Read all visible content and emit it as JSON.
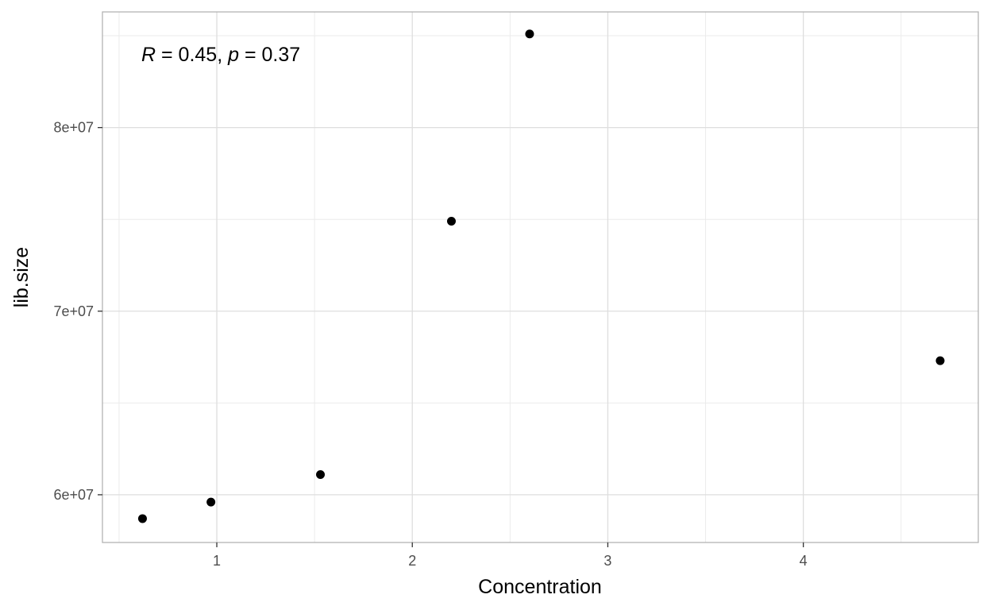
{
  "chart_data": {
    "type": "scatter",
    "title": "",
    "xlabel": "Concentration",
    "ylabel": "lib.size",
    "xlim": [
      0.415,
      4.895
    ],
    "ylim": [
      57400000,
      86300000
    ],
    "x_ticks": [
      1,
      2,
      3,
      4
    ],
    "x_minor_ticks": [
      0.5,
      1.5,
      2.5,
      3.5,
      4.5
    ],
    "y_ticks": [
      60000000,
      70000000,
      80000000
    ],
    "y_tick_labels": [
      "6e+07",
      "7e+07",
      "8e+07"
    ],
    "y_minor_ticks": [
      65000000,
      75000000,
      85000000
    ],
    "grid": true,
    "points": [
      {
        "x": 0.62,
        "y": 58700000
      },
      {
        "x": 0.97,
        "y": 59600000
      },
      {
        "x": 1.53,
        "y": 61100000
      },
      {
        "x": 2.2,
        "y": 74900000
      },
      {
        "x": 2.6,
        "y": 85100000
      },
      {
        "x": 4.7,
        "y": 67300000
      }
    ],
    "point_color": "#000000",
    "annotation": {
      "r_symbol": "R",
      "r_value": " = 0.45, ",
      "p_symbol": "p",
      "p_value": " = 0.37"
    }
  }
}
